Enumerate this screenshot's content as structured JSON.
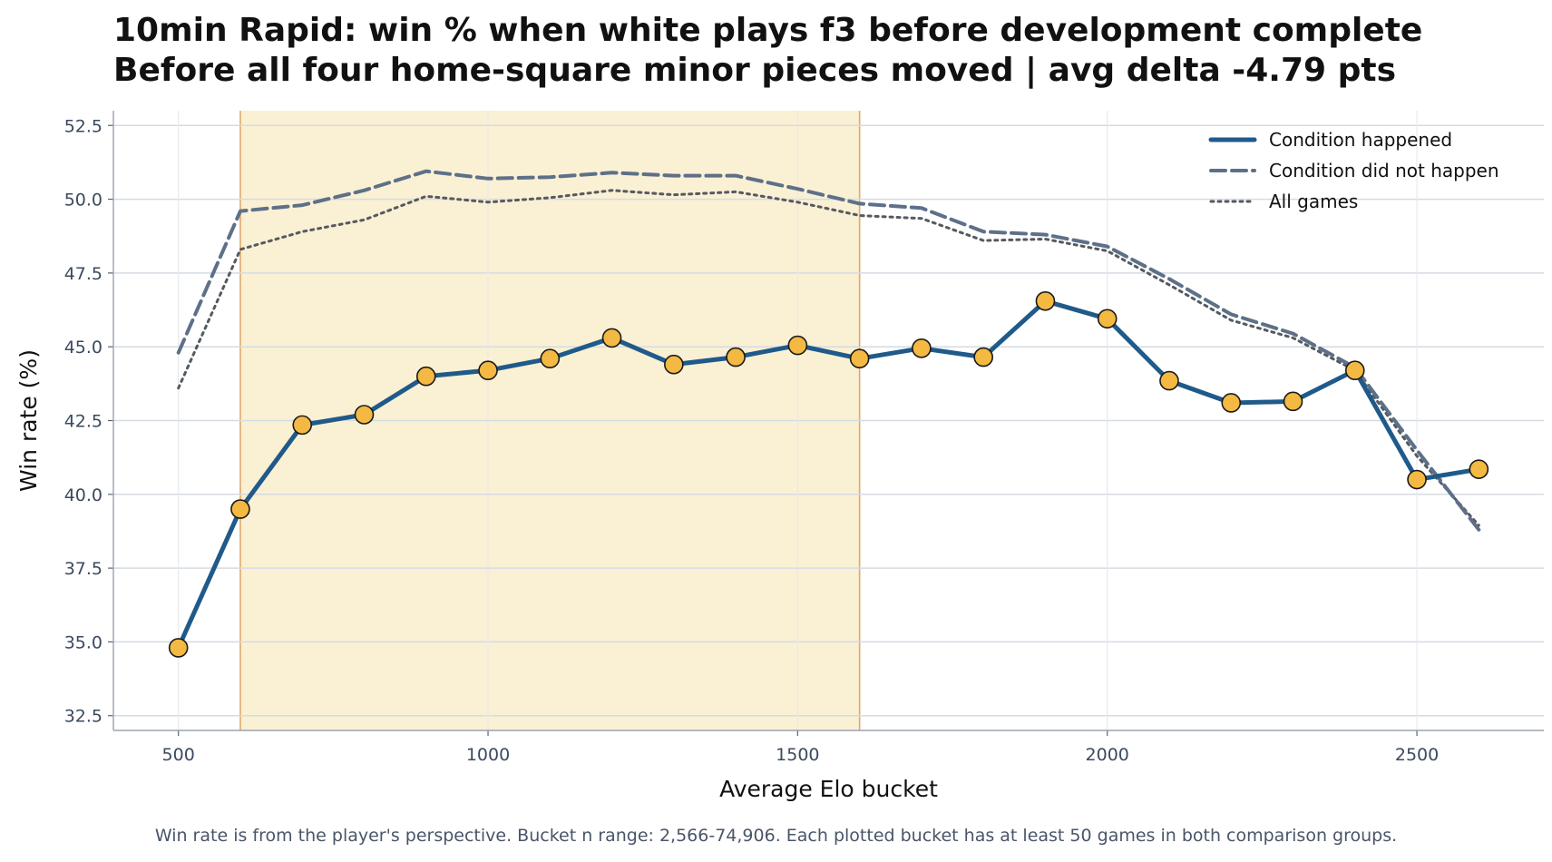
{
  "chart_data": {
    "type": "line",
    "title": "10min Rapid: win % when white plays f3 before development complete",
    "subtitle": "Before all four home-square minor pieces moved | avg delta -4.79 pts",
    "xlabel": "Average Elo bucket",
    "ylabel": "Win rate (%)",
    "xlim": [
      395,
      2705
    ],
    "ylim": [
      32.0,
      53.0
    ],
    "xticks": [
      500,
      1000,
      1500,
      2000,
      2500
    ],
    "yticks": [
      32.5,
      35.0,
      37.5,
      40.0,
      42.5,
      45.0,
      47.5,
      50.0,
      52.5
    ],
    "x": [
      500,
      600,
      700,
      800,
      900,
      1000,
      1100,
      1200,
      1300,
      1400,
      1500,
      1600,
      1700,
      1800,
      1900,
      2000,
      2100,
      2200,
      2300,
      2400,
      2500,
      2600
    ],
    "shaded_region": [
      600,
      1600
    ],
    "series": [
      {
        "name": "Condition happened",
        "style": "solid-markers",
        "color": "#1f5a8a",
        "values": [
          34.8,
          39.5,
          42.35,
          42.7,
          44.0,
          44.2,
          44.6,
          45.3,
          44.4,
          44.65,
          45.05,
          44.6,
          44.95,
          44.65,
          46.55,
          45.95,
          43.85,
          43.1,
          43.15,
          44.2,
          40.5,
          40.85
        ]
      },
      {
        "name": "Condition did not happen",
        "style": "dashed",
        "color": "#5e7088",
        "values": [
          44.8,
          49.6,
          49.8,
          50.3,
          50.95,
          50.7,
          50.75,
          50.9,
          50.8,
          50.8,
          50.35,
          49.85,
          49.7,
          48.9,
          48.8,
          48.4,
          47.3,
          46.1,
          45.45,
          44.3,
          41.5,
          38.8
        ]
      },
      {
        "name": "All games",
        "style": "dotted",
        "color": "#555a60",
        "values": [
          43.6,
          48.3,
          48.9,
          49.3,
          50.1,
          49.9,
          50.05,
          50.3,
          50.15,
          50.25,
          49.9,
          49.45,
          49.35,
          48.6,
          48.65,
          48.25,
          47.1,
          45.9,
          45.3,
          44.2,
          41.3,
          38.95
        ]
      }
    ],
    "legend_position": "upper-right",
    "grid": true,
    "colors": {
      "marker_fill": "#f4b942",
      "shade": "#faf0d4",
      "shade_edge": "#e3a868",
      "grid": "#d5dbe3"
    }
  },
  "footnote": "Win rate is from the player's perspective. Bucket n range: 2,566-74,906. Each plotted bucket has at least 50 games in both comparison groups."
}
